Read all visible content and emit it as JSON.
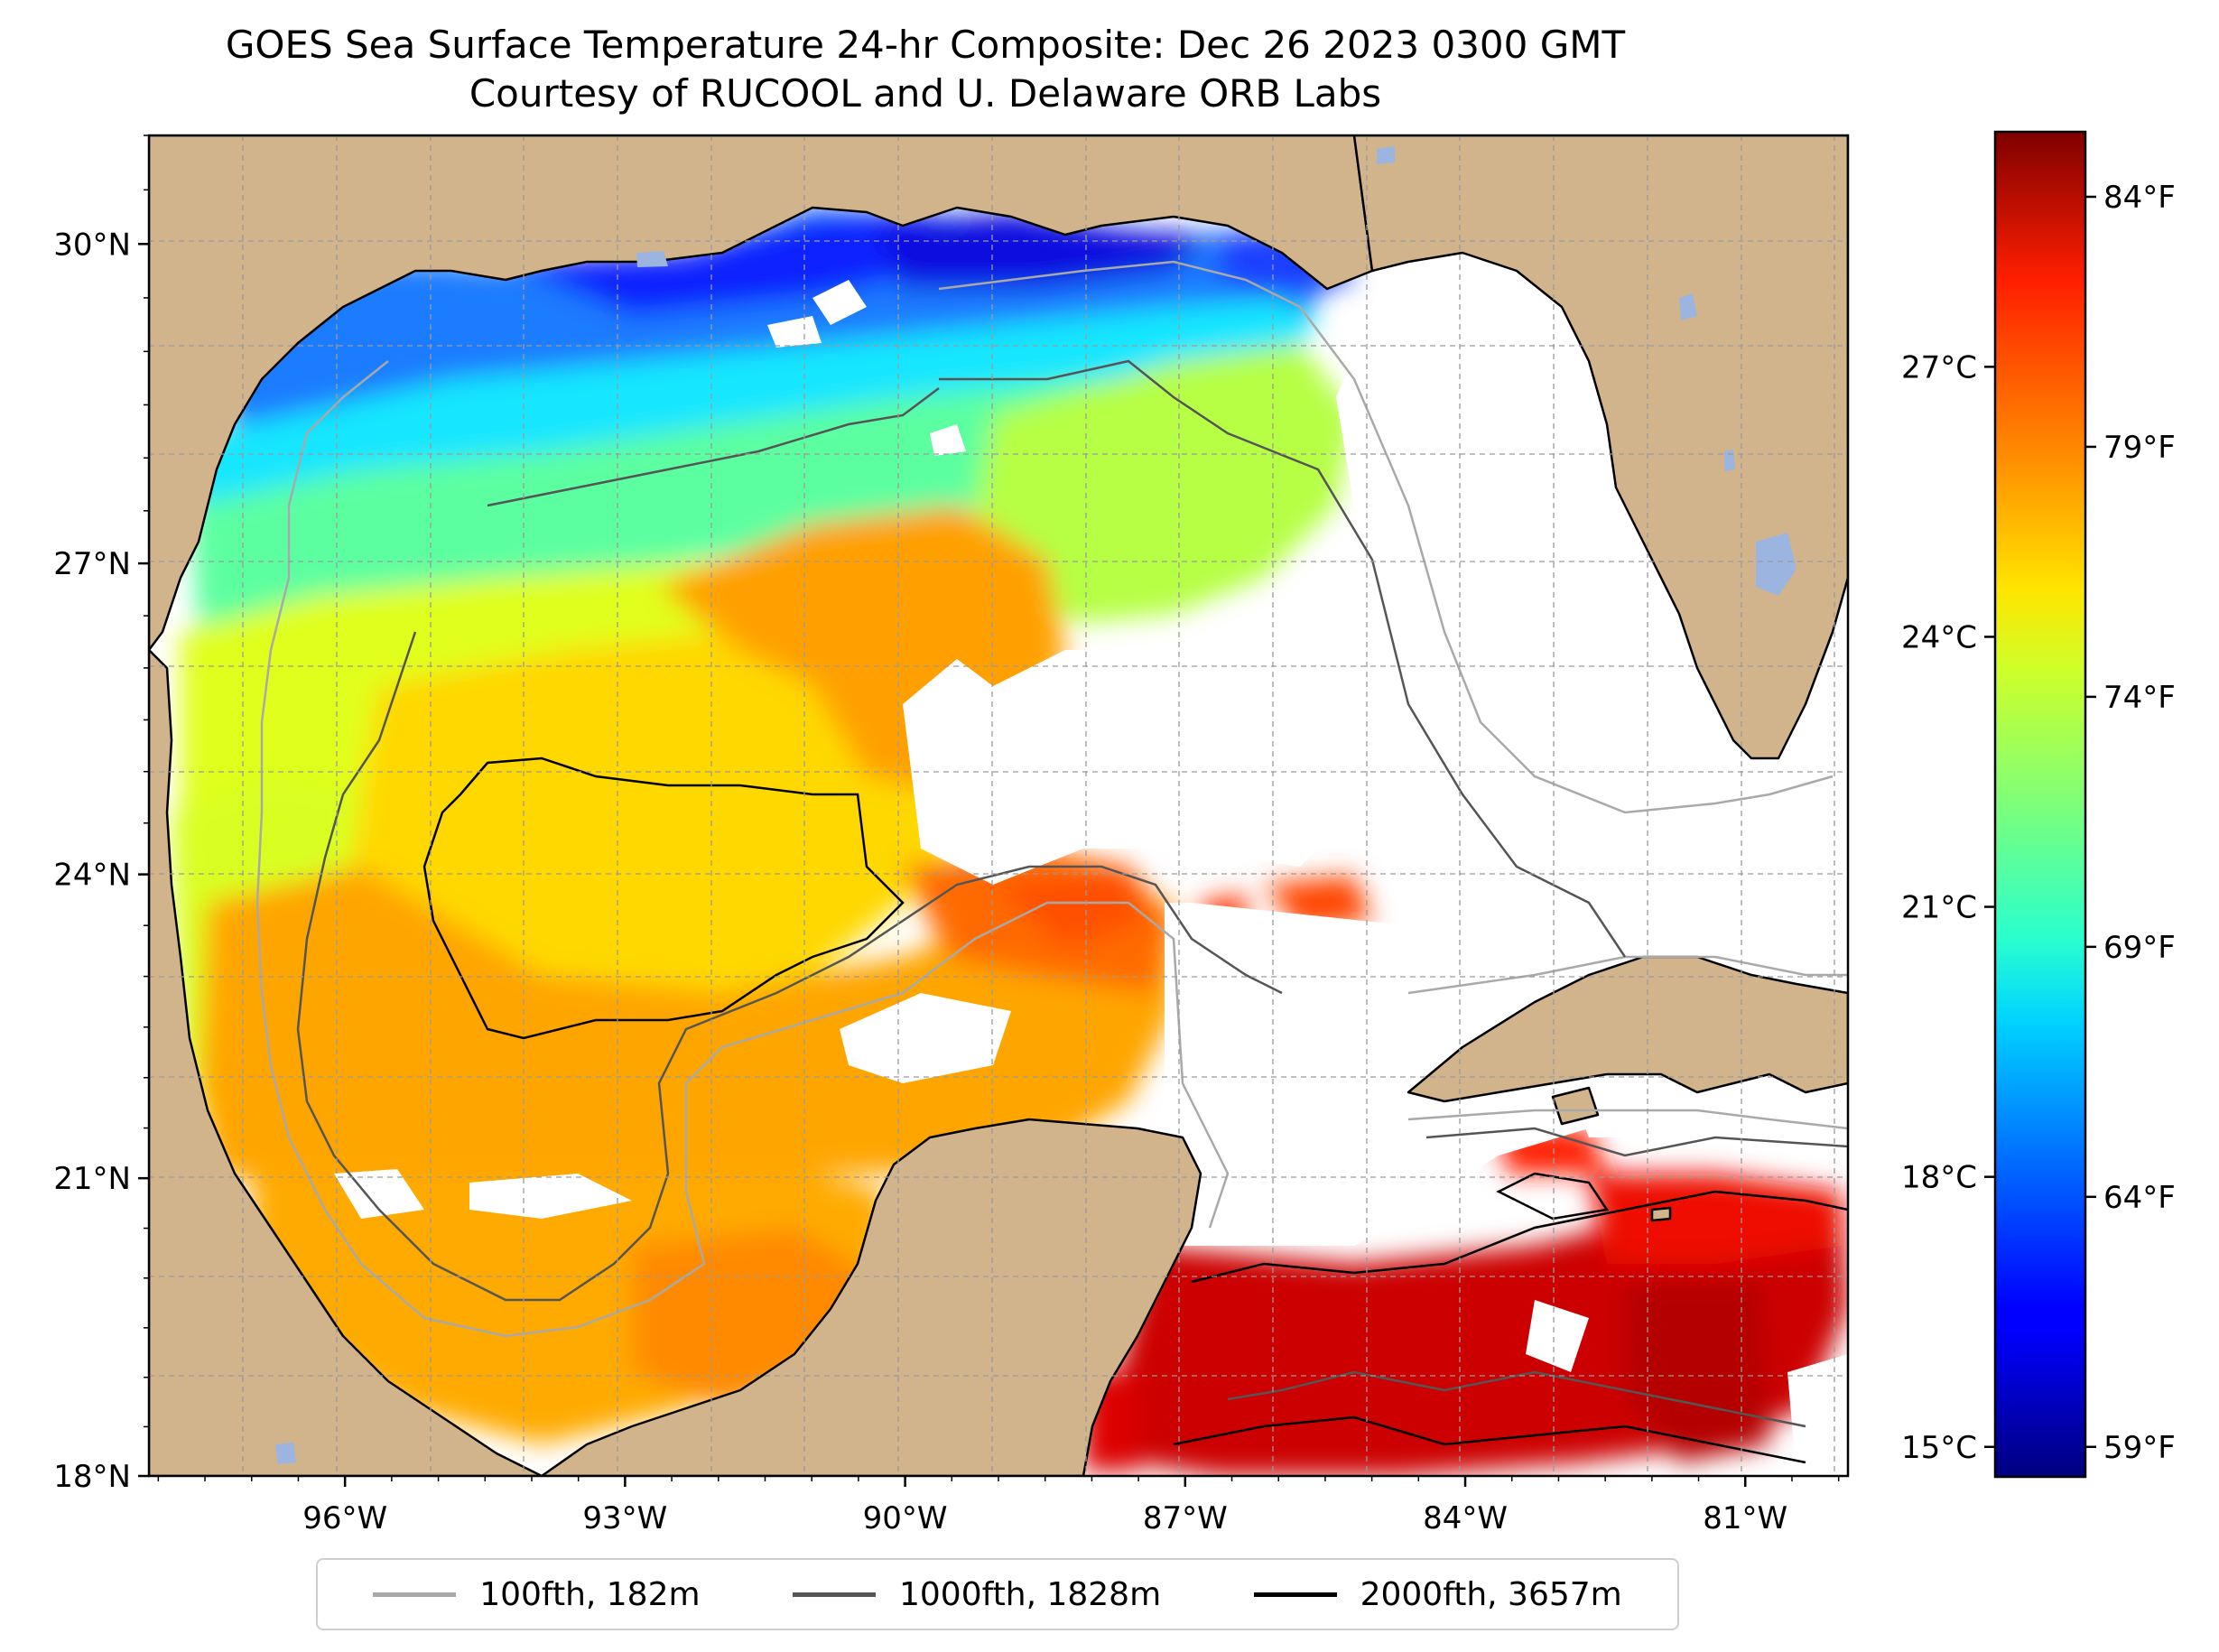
{
  "title": "GOES Sea Surface Temperature 24-hr Composite: Dec 26 2023 0300 GMT",
  "subtitle": "Courtesy of RUCOOL and U. Delaware ORB Labs",
  "map": {
    "lon_range": [
      -98.1,
      -79.9
    ],
    "lat_range": [
      18.0,
      31.0
    ],
    "lat_ticks": [
      {
        "value": 30,
        "label": "30°N"
      },
      {
        "value": 27,
        "label": "27°N"
      },
      {
        "value": 24,
        "label": "24°N"
      },
      {
        "value": 21,
        "label": "21°N"
      },
      {
        "value": 18,
        "label": "18°N"
      }
    ],
    "lon_ticks": [
      {
        "value": -96,
        "label": "96°W"
      },
      {
        "value": -93,
        "label": "93°W"
      },
      {
        "value": -90,
        "label": "90°W"
      },
      {
        "value": -87,
        "label": "87°W"
      },
      {
        "value": -84,
        "label": "84°W"
      },
      {
        "value": -81,
        "label": "81°W"
      }
    ],
    "land_color": "#d2b48c",
    "water_body_color": "#9bb5e0",
    "gridlines": "dashed"
  },
  "colorbar": {
    "colormap": "jet",
    "celsius_ticks": [
      {
        "value": 27,
        "label": "27°C"
      },
      {
        "value": 24,
        "label": "24°C"
      },
      {
        "value": 21,
        "label": "21°C"
      },
      {
        "value": 18,
        "label": "18°C"
      },
      {
        "value": 15,
        "label": "15°C"
      }
    ],
    "fahrenheit_ticks": [
      {
        "value": 84,
        "label": "84°F"
      },
      {
        "value": 79,
        "label": "79°F"
      },
      {
        "value": 74,
        "label": "74°F"
      },
      {
        "value": 69,
        "label": "69°F"
      },
      {
        "value": 64,
        "label": "64°F"
      },
      {
        "value": 59,
        "label": "59°F"
      }
    ]
  },
  "legend": [
    {
      "label": "100fth, 182m",
      "color": "#a9a9a9"
    },
    {
      "label": "1000fth, 1828m",
      "color": "#555555"
    },
    {
      "label": "2000fth, 3657m",
      "color": "#000000"
    }
  ]
}
